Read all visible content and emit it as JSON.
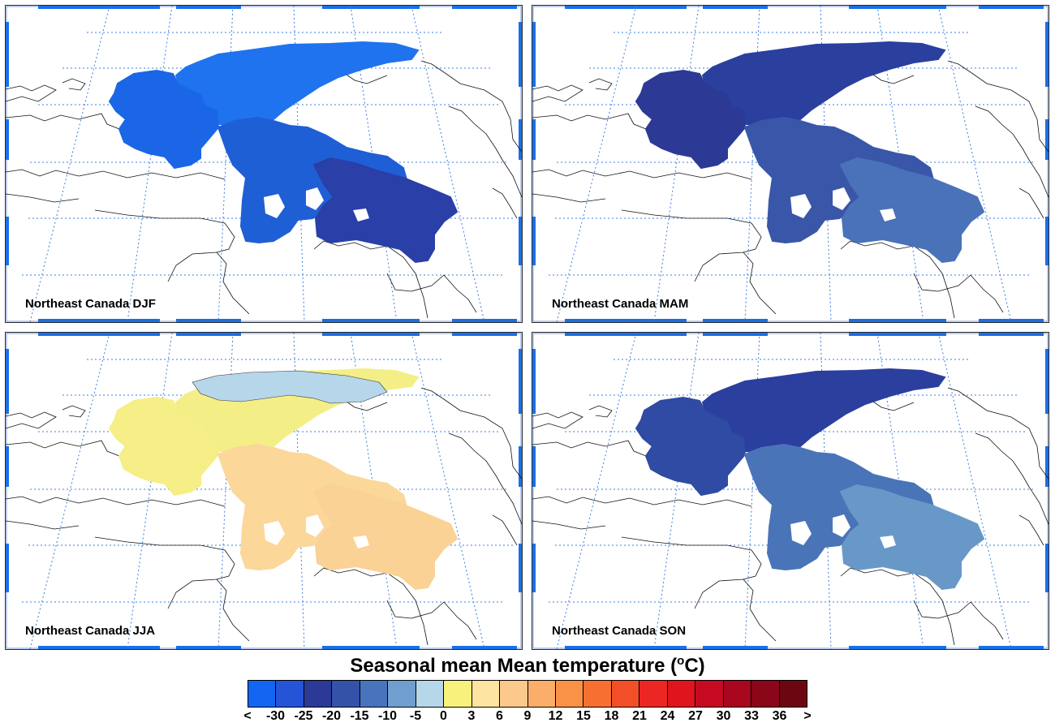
{
  "figure": {
    "title_prefix": "Seasonal mean Mean temperature (",
    "title_unit_sup": "o",
    "title_suffix": "C)"
  },
  "panels": [
    {
      "label": "Northeast Canada DJF",
      "season": "DJF",
      "fills": {
        "north": "#1f73ee",
        "west": "#1a66e6",
        "mid": "#1f5fd6",
        "southeast": "#2a3fa8"
      }
    },
    {
      "label": "Northeast Canada MAM",
      "season": "MAM",
      "fills": {
        "north": "#2b3f9f",
        "west": "#2c3a95",
        "mid": "#3956a8",
        "southeast": "#4a72b8"
      }
    },
    {
      "label": "Northeast Canada JJA",
      "season": "JJA",
      "fills": {
        "north": "#f3ef86",
        "west": "#f6ee86",
        "mid": "#fbd79a",
        "southeast": "#fad295",
        "cold_patch": "#b6d6ea"
      }
    },
    {
      "label": "Northeast Canada SON",
      "season": "SON",
      "fills": {
        "north": "#2b3f9f",
        "west": "#2f4ba3",
        "mid": "#4a74b8",
        "southeast": "#6898c8"
      }
    }
  ],
  "colorbar": {
    "colors": [
      "#1366f1",
      "#2554d6",
      "#2b3a97",
      "#3552a9",
      "#4874bd",
      "#709fcf",
      "#b6d7ea",
      "#f8f27c",
      "#fde4a0",
      "#fbc98c",
      "#fbae69",
      "#f99246",
      "#f77032",
      "#f24f29",
      "#eb2623",
      "#e0141d",
      "#c50a22",
      "#a9061f",
      "#8b0618",
      "#6c0712"
    ],
    "tick_labels": [
      "<",
      "-30",
      "-25",
      "-20",
      "-15",
      "-10",
      "-5",
      "0",
      "3",
      "6",
      "9",
      "12",
      "15",
      "18",
      "21",
      "24",
      "27",
      "30",
      "33",
      "36",
      ">"
    ]
  }
}
